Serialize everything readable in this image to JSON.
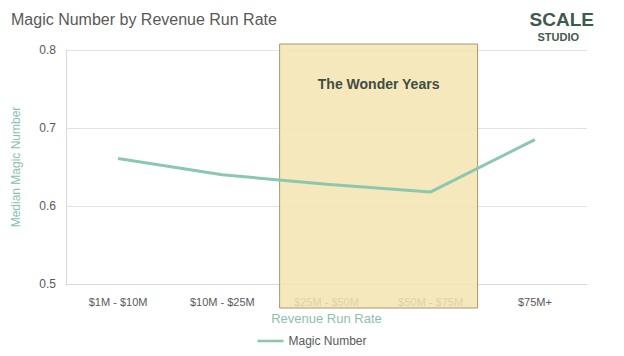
{
  "chart_data": {
    "type": "line",
    "title": "Magic Number by Revenue Run Rate",
    "logo": [
      "SCALE",
      "STUDIO"
    ],
    "x_label": "Revenue Run Rate",
    "y_label": "Median Magic Number",
    "categories": [
      "$1M - $10M",
      "$10M - $25M",
      "$25M - $50M",
      "$50M - $75M",
      "$75M+"
    ],
    "series": [
      {
        "name": "Magic Number",
        "color": "#8cc7b0",
        "values": [
          0.661,
          0.64,
          0.628,
          0.618,
          0.685
        ]
      }
    ],
    "ylim": [
      0.5,
      0.8
    ],
    "yticks": [
      0.5,
      0.6,
      0.7,
      0.8
    ],
    "grid": true,
    "legend": "bottom",
    "annotations": [
      {
        "text": "The Wonder Years",
        "categories": [
          "$25M - $50M",
          "$50M - $75M"
        ]
      }
    ]
  }
}
